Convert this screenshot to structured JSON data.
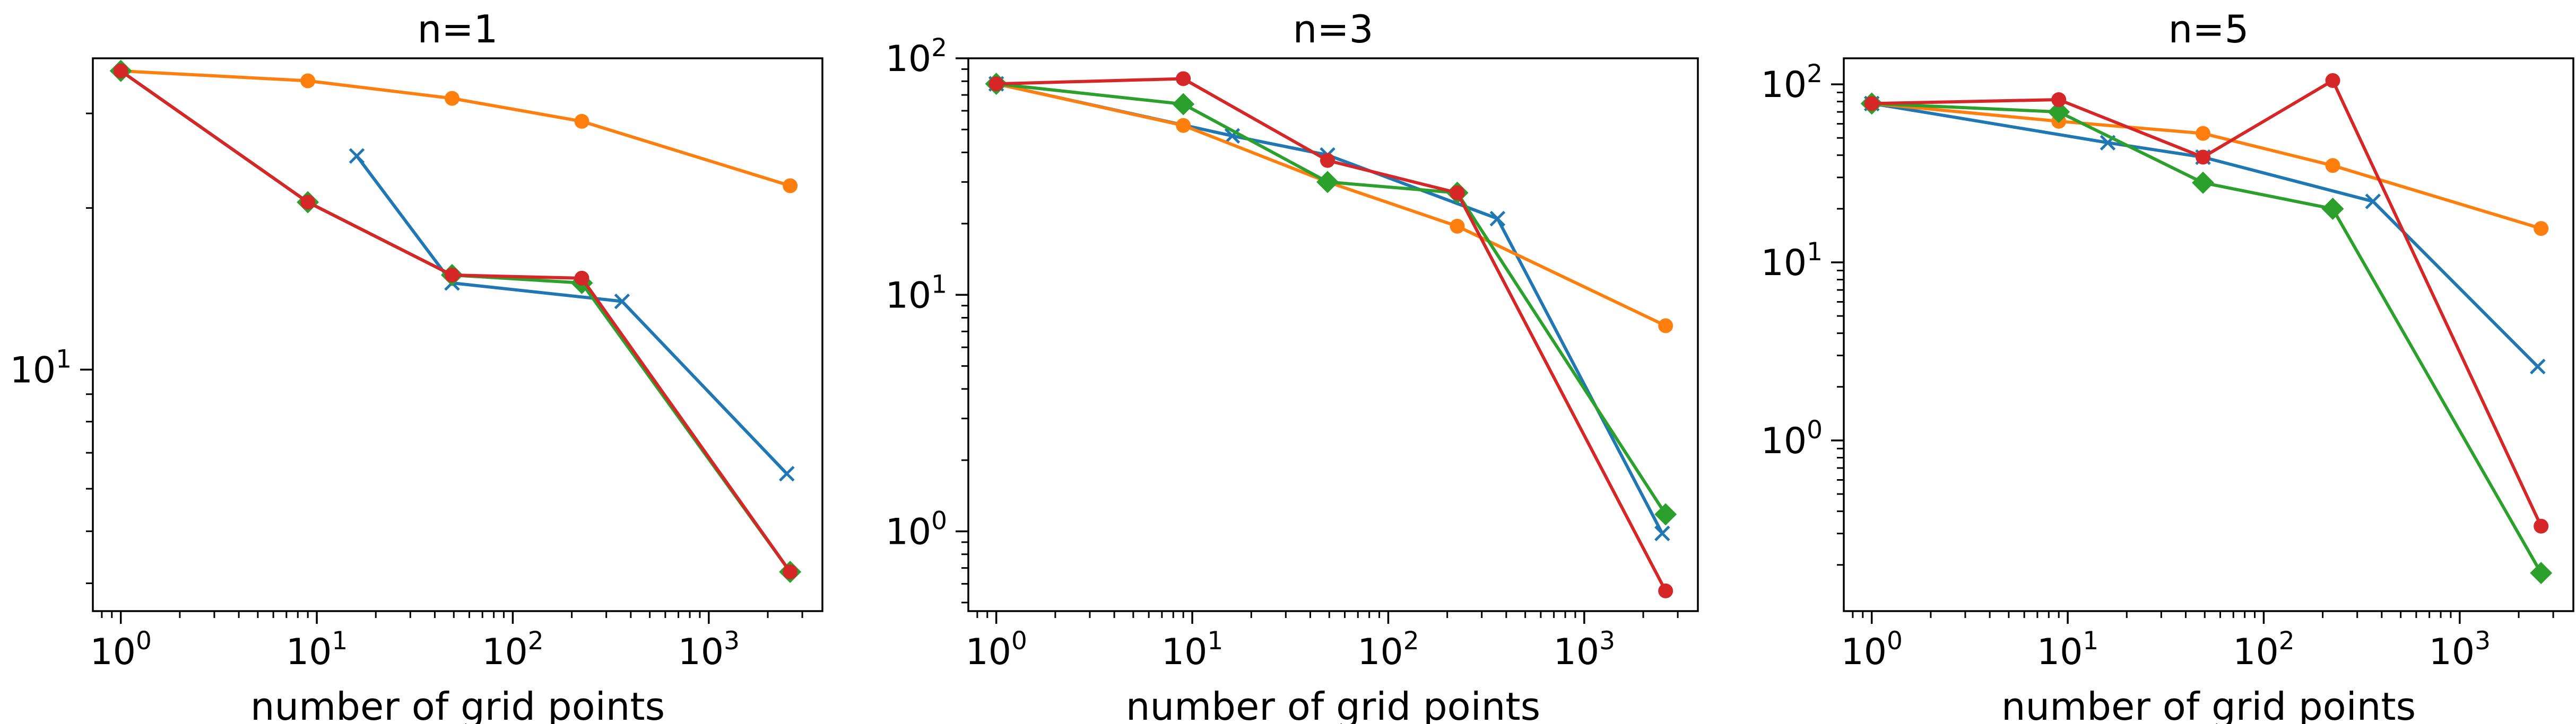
{
  "chart_data": [
    {
      "type": "line",
      "title": "n=1",
      "xlabel": "number of grid points",
      "ylabel": "",
      "xscale": "log",
      "yscale": "log",
      "xlim": [
        0.72,
        3800
      ],
      "ylim": [
        3.55,
        38
      ],
      "xticks": [
        {
          "value": 1,
          "base": "10",
          "exp": "0"
        },
        {
          "value": 10,
          "base": "10",
          "exp": "1"
        },
        {
          "value": 100,
          "base": "10",
          "exp": "2"
        },
        {
          "value": 1000,
          "base": "10",
          "exp": "3"
        }
      ],
      "yticks": [
        {
          "value": 10,
          "base": "10",
          "exp": "1"
        }
      ],
      "series": [
        {
          "color": "#1f77b4",
          "marker": "x",
          "points": [
            [
              16,
              25
            ],
            [
              49,
              14.5
            ],
            [
              361,
              13.4
            ],
            [
              2500,
              6.4
            ]
          ]
        },
        {
          "color": "#ff7f0e",
          "marker": "o",
          "points": [
            [
              1,
              36
            ],
            [
              9,
              34.5
            ],
            [
              49,
              32
            ],
            [
              225,
              29
            ],
            [
              2601,
              22
            ]
          ]
        },
        {
          "color": "#2ca02c",
          "marker": "D",
          "points": [
            [
              1,
              36
            ],
            [
              9,
              20.5
            ],
            [
              49,
              15
            ],
            [
              225,
              14.5
            ],
            [
              2601,
              4.2
            ]
          ]
        },
        {
          "color": "#d62728",
          "marker": "o",
          "points": [
            [
              1,
              36
            ],
            [
              9,
              20.5
            ],
            [
              49,
              15
            ],
            [
              225,
              14.8
            ],
            [
              2601,
              4.2
            ]
          ]
        }
      ]
    },
    {
      "type": "line",
      "title": "n=3",
      "xlabel": "number of grid points",
      "ylabel": "",
      "xscale": "log",
      "yscale": "log",
      "xlim": [
        0.72,
        3800
      ],
      "ylim": [
        0.46,
        100
      ],
      "xticks": [
        {
          "value": 1,
          "base": "10",
          "exp": "0"
        },
        {
          "value": 10,
          "base": "10",
          "exp": "1"
        },
        {
          "value": 100,
          "base": "10",
          "exp": "2"
        },
        {
          "value": 1000,
          "base": "10",
          "exp": "3"
        }
      ],
      "yticks": [
        {
          "value": 1,
          "base": "10",
          "exp": "0"
        },
        {
          "value": 10,
          "base": "10",
          "exp": "1"
        },
        {
          "value": 100,
          "base": "10",
          "exp": "2"
        }
      ],
      "series": [
        {
          "color": "#1f77b4",
          "marker": "x",
          "points": [
            [
              1,
              78
            ],
            [
              16,
              47
            ],
            [
              49,
              39
            ],
            [
              361,
              21
            ],
            [
              2500,
              0.98
            ]
          ]
        },
        {
          "color": "#ff7f0e",
          "marker": "o",
          "points": [
            [
              1,
              78
            ],
            [
              9,
              52
            ],
            [
              49,
              30
            ],
            [
              225,
              19.5
            ],
            [
              2601,
              7.4
            ]
          ]
        },
        {
          "color": "#2ca02c",
          "marker": "D",
          "points": [
            [
              1,
              78
            ],
            [
              9,
              64
            ],
            [
              49,
              30
            ],
            [
              225,
              27
            ],
            [
              2601,
              1.18
            ]
          ]
        },
        {
          "color": "#d62728",
          "marker": "o",
          "points": [
            [
              1,
              78
            ],
            [
              9,
              82
            ],
            [
              49,
              37
            ],
            [
              225,
              27
            ],
            [
              2601,
              0.56
            ]
          ]
        }
      ]
    },
    {
      "type": "line",
      "title": "n=5",
      "xlabel": "number of grid points",
      "ylabel": "",
      "xscale": "log",
      "yscale": "log",
      "xlim": [
        0.72,
        3800
      ],
      "ylim": [
        0.11,
        140
      ],
      "xticks": [
        {
          "value": 1,
          "base": "10",
          "exp": "0"
        },
        {
          "value": 10,
          "base": "10",
          "exp": "1"
        },
        {
          "value": 100,
          "base": "10",
          "exp": "2"
        },
        {
          "value": 1000,
          "base": "10",
          "exp": "3"
        }
      ],
      "yticks": [
        {
          "value": 1,
          "base": "10",
          "exp": "0"
        },
        {
          "value": 10,
          "base": "10",
          "exp": "1"
        },
        {
          "value": 100,
          "base": "10",
          "exp": "2"
        }
      ],
      "series": [
        {
          "color": "#1f77b4",
          "marker": "x",
          "points": [
            [
              1,
              78
            ],
            [
              16,
              47
            ],
            [
              49,
              39
            ],
            [
              361,
              22
            ],
            [
              2500,
              2.6
            ]
          ]
        },
        {
          "color": "#ff7f0e",
          "marker": "o",
          "points": [
            [
              1,
              78
            ],
            [
              9,
              62
            ],
            [
              49,
              53
            ],
            [
              225,
              35
            ],
            [
              2601,
              15.5
            ]
          ]
        },
        {
          "color": "#2ca02c",
          "marker": "D",
          "points": [
            [
              1,
              78
            ],
            [
              9,
              70
            ],
            [
              49,
              28
            ],
            [
              225,
              20
            ],
            [
              2601,
              0.18
            ]
          ]
        },
        {
          "color": "#d62728",
          "marker": "o",
          "points": [
            [
              1,
              78
            ],
            [
              9,
              82
            ],
            [
              49,
              39
            ],
            [
              225,
              105
            ],
            [
              2601,
              0.33
            ]
          ]
        }
      ]
    }
  ]
}
